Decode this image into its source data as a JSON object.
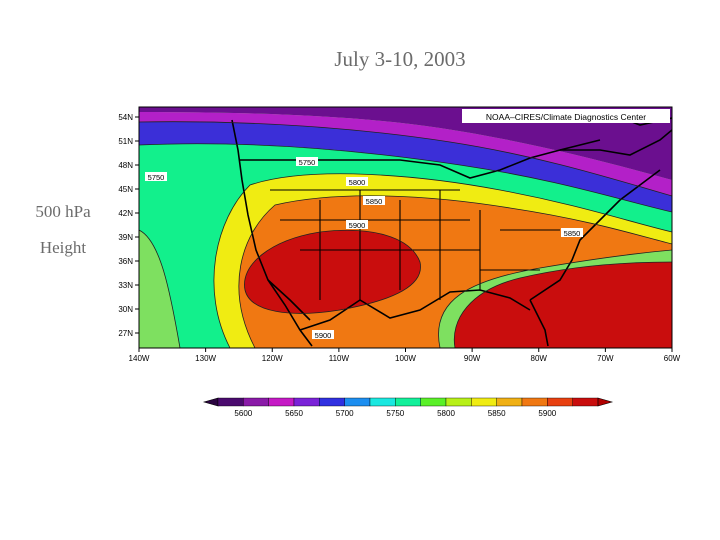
{
  "slide": {
    "title": "July 3-10, 2003",
    "label_line1": "500 hPa",
    "label_line2": "Height"
  },
  "map": {
    "credit": "NOAA–CIRES/Climate Diagnostics Center",
    "lat_labels": [
      "54N",
      "51N",
      "48N",
      "45N",
      "42N",
      "39N",
      "36N",
      "33N",
      "30N",
      "27N"
    ],
    "lon_labels": [
      "140W",
      "130W",
      "120W",
      "110W",
      "100W",
      "90W",
      "80W",
      "70W",
      "60W"
    ],
    "contour_labels": [
      "5750",
      "5750",
      "5800",
      "5850",
      "5900",
      "5850",
      "5900"
    ],
    "colors": {
      "5600": "#6b0f8f",
      "5650": "#b320c8",
      "5700": "#3b2fd8",
      "5750": "#1aa6ea",
      "5800": "#12f08c",
      "5850": "#f0ec12",
      "5900": "#f07812",
      "5950": "#c90d0d"
    }
  },
  "legend": {
    "tick_labels": [
      "5600",
      "5650",
      "5700",
      "5750",
      "5800",
      "5850",
      "5900"
    ],
    "colors": [
      "#4a0a6e",
      "#8a1aa8",
      "#c51ac5",
      "#7a22d8",
      "#3030e0",
      "#1c8ef0",
      "#1ae8e0",
      "#12f09a",
      "#5af028",
      "#b8f018",
      "#f0ec12",
      "#f0b014",
      "#f07812",
      "#e84010",
      "#c90d0d"
    ]
  }
}
